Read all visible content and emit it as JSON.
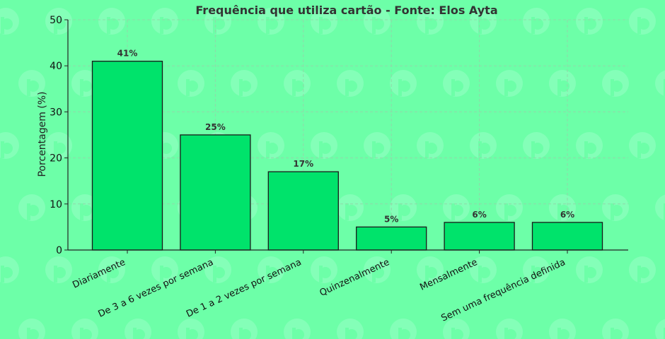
{
  "colors": {
    "background": "#6dffa8",
    "bar_fill": "#00e36b",
    "bar_stroke": "#1a1a1a",
    "grid": "#8fd9a8",
    "axis": "#222222",
    "watermark": "#84ffb8"
  },
  "watermark_icon": "logo-watermark-icon",
  "chart_data": {
    "type": "bar",
    "title": "Frequência que utiliza cartão - Fonte: Elos Ayta",
    "xlabel": "",
    "ylabel": "Porcentagem (%)",
    "ylim": [
      0,
      50
    ],
    "yticks": [
      0,
      10,
      20,
      30,
      40,
      50
    ],
    "grid": true,
    "categories": [
      "Diariamente",
      "De 3 a 6 vezes por semana",
      "De 1 a 2 vezes por semana",
      "Quinzenalmente",
      "Mensalmente",
      "Sem uma frequência definida"
    ],
    "values": [
      41,
      25,
      17,
      5,
      6,
      6
    ],
    "data_labels": [
      "41%",
      "25%",
      "17%",
      "5%",
      "6%",
      "6%"
    ]
  }
}
